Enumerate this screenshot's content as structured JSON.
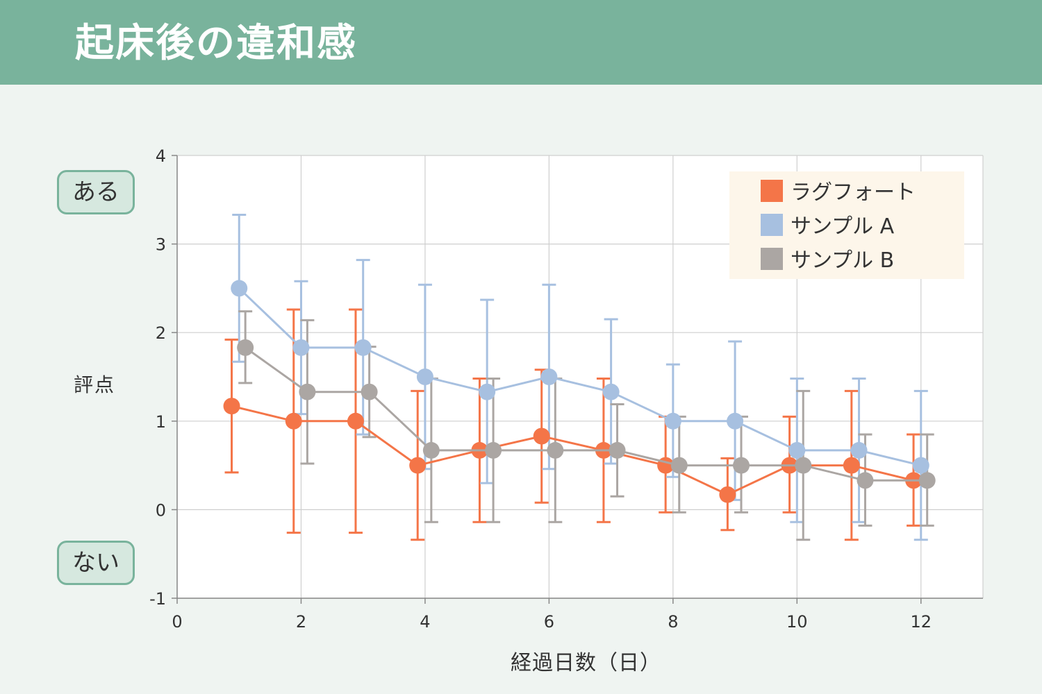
{
  "header": {
    "title": "起床後の違和感"
  },
  "badges": {
    "top": "ある",
    "bottom": "ない"
  },
  "chart_data": {
    "type": "line",
    "title": "起床後の違和感",
    "xlabel": "経過日数（日）",
    "ylabel": "評点",
    "xlim": [
      0,
      13
    ],
    "ylim": [
      -1,
      4
    ],
    "xticks": [
      0,
      2,
      4,
      6,
      8,
      10,
      12
    ],
    "yticks": [
      -1,
      0,
      1,
      2,
      3,
      4
    ],
    "grid": true,
    "legend_position": "top-right",
    "series": [
      {
        "name": "ラグフォート",
        "color": "#f47548",
        "x": [
          1,
          2,
          3,
          4,
          5,
          6,
          7,
          8,
          9,
          10,
          11,
          12
        ],
        "y": [
          1.17,
          1.0,
          1.0,
          0.5,
          0.67,
          0.83,
          0.67,
          0.5,
          0.17,
          0.5,
          0.5,
          0.33
        ],
        "error_low": [
          0.42,
          -0.26,
          -0.26,
          -0.34,
          -0.14,
          0.08,
          -0.14,
          -0.03,
          -0.23,
          -0.03,
          -0.34,
          -0.18
        ],
        "error_high": [
          1.92,
          2.26,
          2.26,
          1.34,
          1.48,
          1.58,
          1.48,
          1.05,
          0.58,
          1.05,
          1.34,
          0.85
        ]
      },
      {
        "name": "サンプル A",
        "color": "#a7c0e0",
        "x": [
          1,
          2,
          3,
          4,
          5,
          6,
          7,
          8,
          9,
          10,
          11,
          12
        ],
        "y": [
          2.5,
          1.83,
          1.83,
          1.5,
          1.33,
          1.5,
          1.33,
          1.0,
          1.0,
          0.67,
          0.67,
          0.5
        ],
        "error_low": [
          1.67,
          1.08,
          0.85,
          0.46,
          0.3,
          0.46,
          0.52,
          0.37,
          0.11,
          -0.14,
          -0.14,
          -0.34
        ],
        "error_high": [
          3.33,
          2.58,
          2.82,
          2.54,
          2.37,
          2.54,
          2.15,
          1.64,
          1.9,
          1.48,
          1.48,
          1.34
        ]
      },
      {
        "name": "サンプル B",
        "color": "#aba6a3",
        "x": [
          1,
          2,
          3,
          4,
          5,
          6,
          7,
          8,
          9,
          10,
          11,
          12
        ],
        "y": [
          1.83,
          1.33,
          1.33,
          0.67,
          0.67,
          0.67,
          0.67,
          0.5,
          0.5,
          0.5,
          0.33,
          0.33
        ],
        "error_low": [
          1.43,
          0.52,
          0.82,
          -0.14,
          -0.14,
          -0.14,
          0.15,
          -0.03,
          -0.03,
          -0.34,
          -0.18,
          -0.18
        ],
        "error_high": [
          2.24,
          2.14,
          1.84,
          1.48,
          1.48,
          1.48,
          1.19,
          1.05,
          1.05,
          1.34,
          0.85,
          0.85
        ]
      }
    ]
  }
}
